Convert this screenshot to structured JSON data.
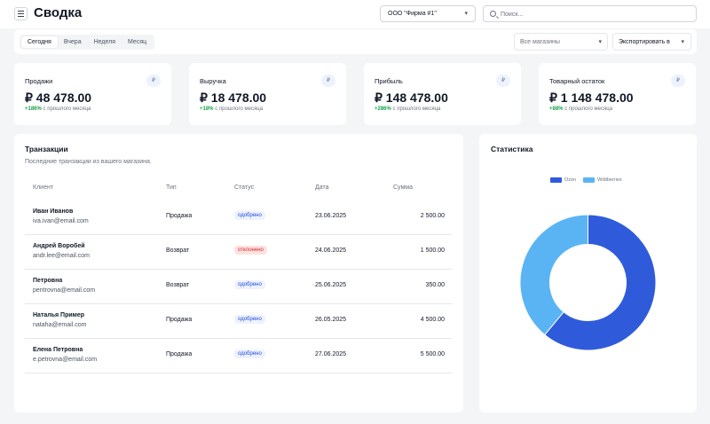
{
  "header": {
    "title": "Сводка",
    "org_select": "ООО \"Фирма #1\"",
    "search_placeholder": "Поиск..."
  },
  "toolbar": {
    "tabs": [
      {
        "label": "Сегодня",
        "active": true
      },
      {
        "label": "Вчера",
        "active": false
      },
      {
        "label": "Неделя",
        "active": false
      },
      {
        "label": "Месяц",
        "active": false
      }
    ],
    "store_select_placeholder": "Все магазины",
    "export_label": "Экспортировать в"
  },
  "kpis": [
    {
      "label": "Продажи",
      "icon": "₽",
      "value": "₽ 48 478.00",
      "delta": "+186%",
      "delta_text": "с прошлого месяца"
    },
    {
      "label": "Выручка",
      "icon": "₽",
      "value": "₽ 18 478.00",
      "delta": "+18%",
      "delta_text": "с прошлого месяца"
    },
    {
      "label": "Прибыль",
      "icon": "₽",
      "value": "₽ 148 478.00",
      "delta": "+286%",
      "delta_text": "с прошлого месяца"
    },
    {
      "label": "Товарный остаток",
      "icon": "₽",
      "value": "₽ 1 148 478.00",
      "delta": "+88%",
      "delta_text": "с прошлого месяца"
    }
  ],
  "transactions": {
    "title": "Транзакции",
    "subtitle": "Последние транзакции из вашего магазина.",
    "columns": {
      "client": "Клиент",
      "type": "Тип",
      "status": "Статус",
      "date": "Дата",
      "amount": "Сумма"
    },
    "rows": [
      {
        "name": "Иван Иванов",
        "email": "iva.ivan@email.com",
        "type": "Продажа",
        "status": "одобрено",
        "status_kind": "ok",
        "date": "23.06.2025",
        "amount": "2 500.00"
      },
      {
        "name": "Андрей Воробей",
        "email": "andr.lee@email.com",
        "type": "Возврат",
        "status": "отклонено",
        "status_kind": "bad",
        "date": "24.06.2025",
        "amount": "1 500.00"
      },
      {
        "name": "Петровна",
        "email": "pentrovna@email.com",
        "type": "Возврат",
        "status": "одобрено",
        "status_kind": "ok",
        "date": "25.06.2025",
        "amount": "350.00"
      },
      {
        "name": "Наталья Пример",
        "email": "nataha@email.com",
        "type": "Продажа",
        "status": "одобрено",
        "status_kind": "ok",
        "date": "26.05.2025",
        "amount": "4 500.00"
      },
      {
        "name": "Елена Петровна",
        "email": "e.petrovna@email.com",
        "type": "Продажа",
        "status": "одобрено",
        "status_kind": "ok",
        "date": "27.06.2025",
        "amount": "5 500.00"
      }
    ]
  },
  "stats": {
    "title": "Статистика"
  },
  "chart_data": {
    "type": "pie",
    "donut": true,
    "title": "Статистика",
    "legend_position": "top",
    "series": [
      {
        "name": "Ozon",
        "value": 61,
        "color": "#2f5bdb"
      },
      {
        "name": "Wildberries",
        "value": 39,
        "color": "#5ab4f4"
      }
    ]
  }
}
